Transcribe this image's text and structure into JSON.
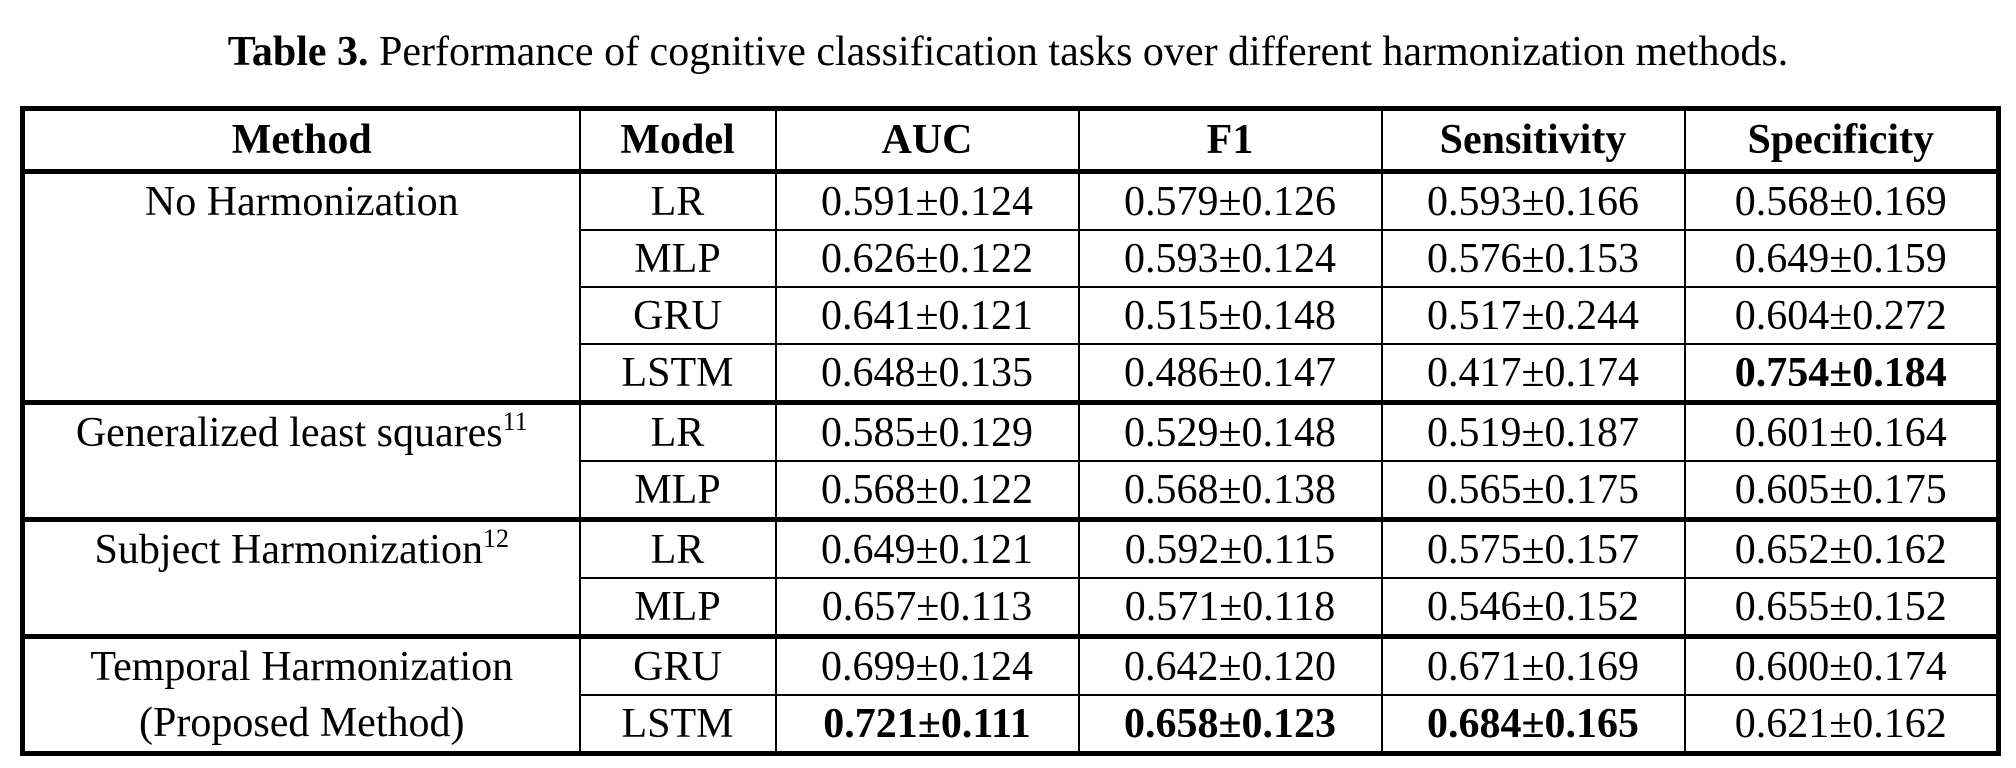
{
  "caption": {
    "label": "Table 3.",
    "text": "Performance of cognitive classification tasks over different harmonization methods."
  },
  "headers": [
    "Method",
    "Model",
    "AUC",
    "F1",
    "Sensitivity",
    "Specificity"
  ],
  "groups": [
    {
      "method_lines": [
        "No Harmonization"
      ],
      "sup": "",
      "rows": [
        {
          "model": "LR",
          "auc": "0.591±0.124",
          "f1": "0.579±0.126",
          "sens": "0.593±0.166",
          "spec": "0.568±0.169"
        },
        {
          "model": "MLP",
          "auc": "0.626±0.122",
          "f1": "0.593±0.124",
          "sens": "0.576±0.153",
          "spec": "0.649±0.159"
        },
        {
          "model": "GRU",
          "auc": "0.641±0.121",
          "f1": "0.515±0.148",
          "sens": "0.517±0.244",
          "spec": "0.604±0.272"
        },
        {
          "model": "LSTM",
          "auc": "0.648±0.135",
          "f1": "0.486±0.147",
          "sens": "0.417±0.174",
          "spec": "0.754±0.184"
        }
      ]
    },
    {
      "method_lines": [
        "Generalized least squares"
      ],
      "sup": "11",
      "rows": [
        {
          "model": "LR",
          "auc": "0.585±0.129",
          "f1": "0.529±0.148",
          "sens": "0.519±0.187",
          "spec": "0.601±0.164"
        },
        {
          "model": "MLP",
          "auc": "0.568±0.122",
          "f1": "0.568±0.138",
          "sens": "0.565±0.175",
          "spec": "0.605±0.175"
        }
      ]
    },
    {
      "method_lines": [
        "Subject Harmonization"
      ],
      "sup": "12",
      "rows": [
        {
          "model": "LR",
          "auc": "0.649±0.121",
          "f1": "0.592±0.115",
          "sens": "0.575±0.157",
          "spec": "0.652±0.162"
        },
        {
          "model": "MLP",
          "auc": "0.657±0.113",
          "f1": "0.571±0.118",
          "sens": "0.546±0.152",
          "spec": "0.655±0.152"
        }
      ]
    },
    {
      "method_lines": [
        "Temporal Harmonization",
        "(Proposed Method)"
      ],
      "sup": "",
      "rows": [
        {
          "model": "GRU",
          "auc": "0.699±0.124",
          "f1": "0.642±0.120",
          "sens": "0.671±0.169",
          "spec": "0.600±0.174"
        },
        {
          "model": "LSTM",
          "auc": "0.721±0.111",
          "f1": "0.658±0.123",
          "sens": "0.684±0.165",
          "spec": "0.621±0.162"
        }
      ]
    }
  ]
}
